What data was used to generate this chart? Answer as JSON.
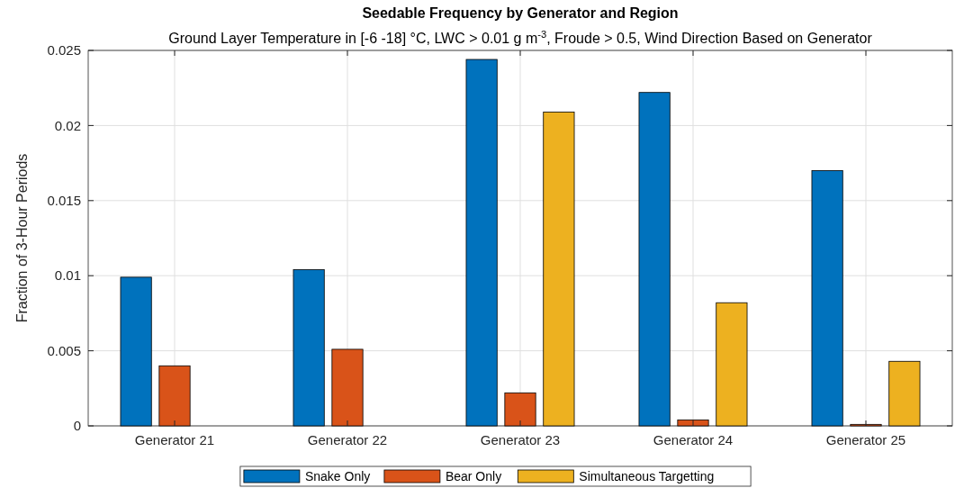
{
  "chart_data": {
    "type": "bar",
    "title": "Seedable Frequency by Generator and Region",
    "subtitle": "Ground Layer Temperature in [-6 -18] °C, LWC > 0.01 g m$^{-3}$, Froude > 0.5, Wind Direction Based on Generator",
    "ylabel": "Fraction of 3-Hour Periods",
    "categories": [
      "Generator 21",
      "Generator 22",
      "Generator 23",
      "Generator 24",
      "Generator 25"
    ],
    "series": [
      {
        "name": "Snake Only",
        "color": "#0072bd",
        "values": [
          0.0099,
          0.0104,
          0.0244,
          0.0222,
          0.017
        ]
      },
      {
        "name": "Bear Only",
        "color": "#d95319",
        "values": [
          0.004,
          0.0051,
          0.0022,
          0.0004,
          0.0001
        ]
      },
      {
        "name": "Simultaneous Targetting",
        "color": "#edb120",
        "values": [
          0,
          0,
          0.0209,
          0.0082,
          0.0043
        ]
      }
    ],
    "ylim": [
      0,
      0.025
    ],
    "yticks": [
      0,
      0.005,
      0.01,
      0.015,
      0.02,
      0.025
    ],
    "grid": true,
    "legend": "bottom"
  }
}
